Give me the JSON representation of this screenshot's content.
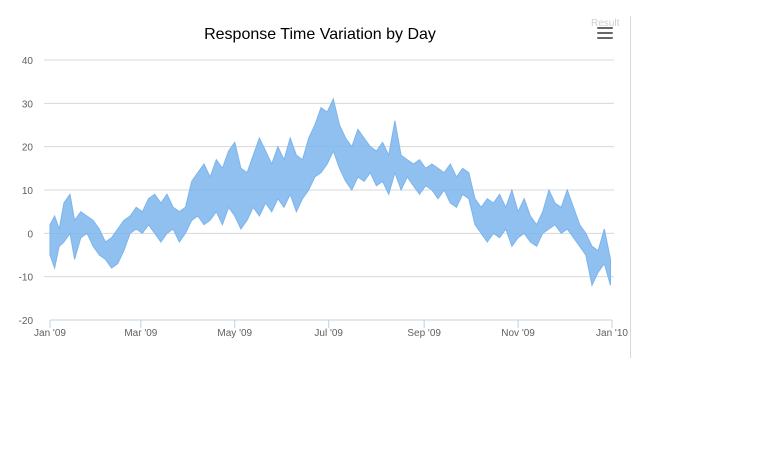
{
  "chart_data": {
    "type": "area",
    "title": "Response Time Variation by Day",
    "xlabel": "",
    "ylabel": "",
    "ylim": [
      -20,
      40
    ],
    "yticks": [
      -20,
      -10,
      0,
      10,
      20,
      30,
      40
    ],
    "xlim": [
      "2009-01-01",
      "2010-01-01"
    ],
    "xticks": [
      {
        "date": "2009-01-01",
        "label": "Jan '09"
      },
      {
        "date": "2009-03-01",
        "label": "Mar '09"
      },
      {
        "date": "2009-05-01",
        "label": "May '09"
      },
      {
        "date": "2009-07-01",
        "label": "Jul '09"
      },
      {
        "date": "2009-09-01",
        "label": "Sep '09"
      },
      {
        "date": "2009-11-01",
        "label": "Nov '09"
      },
      {
        "date": "2010-01-01",
        "label": "Jan '10"
      }
    ],
    "grid": true,
    "legend": "none",
    "series": [
      {
        "color": "#7cb5ec",
        "points": [
          [
            "2009-01-01",
            -5,
            2
          ],
          [
            "2009-01-04",
            -8,
            4
          ],
          [
            "2009-01-07",
            -3,
            1
          ],
          [
            "2009-01-10",
            -2,
            7
          ],
          [
            "2009-01-14",
            0,
            9
          ],
          [
            "2009-01-17",
            -6,
            3
          ],
          [
            "2009-01-21",
            -1,
            5
          ],
          [
            "2009-01-25",
            0,
            4
          ],
          [
            "2009-01-29",
            -3,
            3
          ],
          [
            "2009-02-02",
            -5,
            1
          ],
          [
            "2009-02-06",
            -6,
            -2
          ],
          [
            "2009-02-10",
            -8,
            -1
          ],
          [
            "2009-02-14",
            -7,
            1
          ],
          [
            "2009-02-18",
            -4,
            3
          ],
          [
            "2009-02-22",
            0,
            4
          ],
          [
            "2009-02-26",
            1,
            6
          ],
          [
            "2009-03-02",
            0,
            5
          ],
          [
            "2009-03-06",
            2,
            8
          ],
          [
            "2009-03-10",
            0,
            9
          ],
          [
            "2009-03-14",
            -2,
            7
          ],
          [
            "2009-03-18",
            0,
            9
          ],
          [
            "2009-03-22",
            1,
            6
          ],
          [
            "2009-03-26",
            -2,
            5
          ],
          [
            "2009-03-30",
            0,
            6
          ],
          [
            "2009-04-03",
            3,
            12
          ],
          [
            "2009-04-07",
            4,
            14
          ],
          [
            "2009-04-11",
            2,
            16
          ],
          [
            "2009-04-15",
            3,
            13
          ],
          [
            "2009-04-19",
            5,
            17
          ],
          [
            "2009-04-23",
            2,
            15
          ],
          [
            "2009-04-27",
            6,
            19
          ],
          [
            "2009-05-01",
            4,
            21
          ],
          [
            "2009-05-05",
            1,
            15
          ],
          [
            "2009-05-09",
            3,
            14
          ],
          [
            "2009-05-13",
            6,
            18
          ],
          [
            "2009-05-17",
            4,
            22
          ],
          [
            "2009-05-21",
            7,
            19
          ],
          [
            "2009-05-25",
            5,
            16
          ],
          [
            "2009-05-29",
            8,
            20
          ],
          [
            "2009-06-02",
            6,
            17
          ],
          [
            "2009-06-06",
            9,
            22
          ],
          [
            "2009-06-10",
            5,
            18
          ],
          [
            "2009-06-14",
            8,
            17
          ],
          [
            "2009-06-18",
            10,
            22
          ],
          [
            "2009-06-22",
            13,
            25
          ],
          [
            "2009-06-26",
            14,
            29
          ],
          [
            "2009-06-30",
            16,
            28
          ],
          [
            "2009-07-04",
            19,
            31
          ],
          [
            "2009-07-08",
            15,
            25
          ],
          [
            "2009-07-12",
            12,
            22
          ],
          [
            "2009-07-16",
            10,
            20
          ],
          [
            "2009-07-20",
            13,
            24
          ],
          [
            "2009-07-24",
            12,
            22
          ],
          [
            "2009-07-28",
            14,
            20
          ],
          [
            "2009-08-01",
            11,
            19
          ],
          [
            "2009-08-05",
            12,
            21
          ],
          [
            "2009-08-09",
            9,
            18
          ],
          [
            "2009-08-13",
            14,
            26
          ],
          [
            "2009-08-17",
            10,
            18
          ],
          [
            "2009-08-21",
            13,
            17
          ],
          [
            "2009-08-25",
            11,
            16
          ],
          [
            "2009-08-29",
            9,
            17
          ],
          [
            "2009-09-02",
            11,
            15
          ],
          [
            "2009-09-06",
            10,
            16
          ],
          [
            "2009-09-10",
            8,
            15
          ],
          [
            "2009-09-14",
            10,
            14
          ],
          [
            "2009-09-18",
            7,
            16
          ],
          [
            "2009-09-22",
            6,
            13
          ],
          [
            "2009-09-26",
            9,
            15
          ],
          [
            "2009-09-30",
            8,
            14
          ],
          [
            "2009-10-04",
            2,
            8
          ],
          [
            "2009-10-08",
            0,
            6
          ],
          [
            "2009-10-12",
            -2,
            8
          ],
          [
            "2009-10-16",
            0,
            7
          ],
          [
            "2009-10-20",
            -1,
            9
          ],
          [
            "2009-10-24",
            1,
            6
          ],
          [
            "2009-10-28",
            -3,
            10
          ],
          [
            "2009-11-01",
            -1,
            5
          ],
          [
            "2009-11-05",
            0,
            8
          ],
          [
            "2009-11-09",
            -2,
            4
          ],
          [
            "2009-11-13",
            -3,
            2
          ],
          [
            "2009-11-17",
            0,
            5
          ],
          [
            "2009-11-21",
            1,
            10
          ],
          [
            "2009-11-25",
            2,
            7
          ],
          [
            "2009-11-29",
            0,
            6
          ],
          [
            "2009-12-03",
            1,
            10
          ],
          [
            "2009-12-07",
            -1,
            6
          ],
          [
            "2009-12-11",
            -3,
            2
          ],
          [
            "2009-12-15",
            -5,
            0
          ],
          [
            "2009-12-19",
            -12,
            -3
          ],
          [
            "2009-12-23",
            -9,
            -4
          ],
          [
            "2009-12-27",
            -7,
            1
          ],
          [
            "2009-12-31",
            -12,
            -6
          ]
        ]
      }
    ]
  },
  "ui": {
    "result_label": "Result"
  }
}
